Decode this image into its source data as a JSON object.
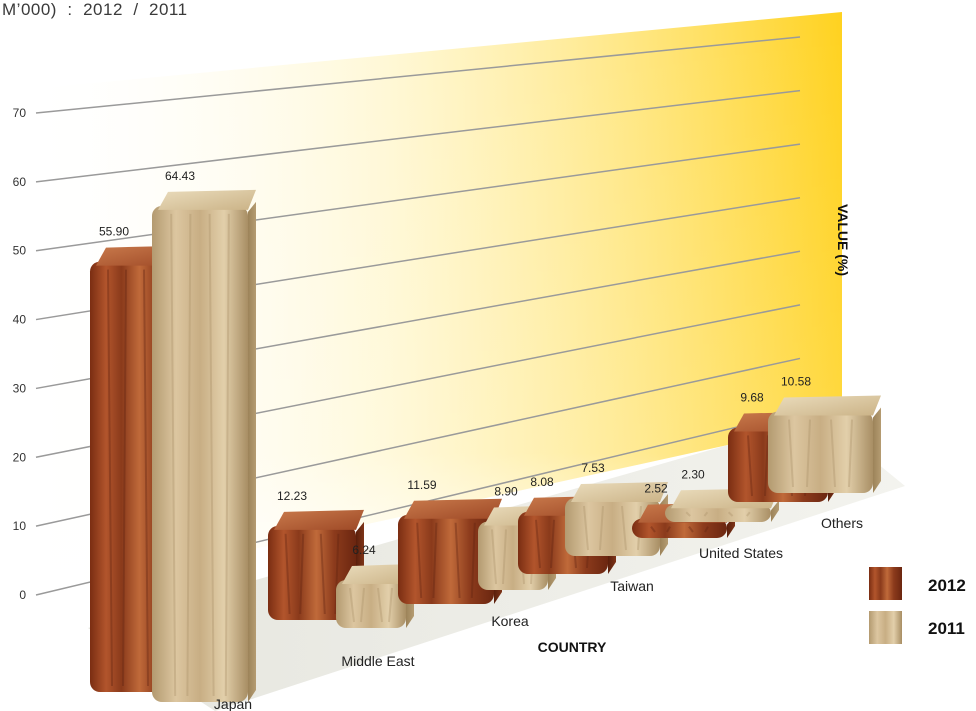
{
  "page": {
    "title_fragment": "M’000)  :  2012  /  2011"
  },
  "chart_data": {
    "type": "bar",
    "title": "",
    "xlabel": "COUNTRY",
    "ylabel": "VALUE (%)",
    "ylim": [
      0,
      70
    ],
    "yticks": [
      0,
      10,
      20,
      30,
      40,
      50,
      60,
      70
    ],
    "categories": [
      "Japan",
      "Middle East",
      "Korea",
      "Taiwan",
      "United States",
      "Others"
    ],
    "series": [
      {
        "name": "2012",
        "values": [
          55.9,
          12.23,
          11.59,
          8.08,
          2.52,
          9.68
        ],
        "labels": [
          "55.90",
          "12.23",
          "11.59",
          "8.08",
          "2.52",
          "9.68"
        ],
        "color": "#9b4a2a"
      },
      {
        "name": "2011",
        "values": [
          64.43,
          6.24,
          8.9,
          7.53,
          2.3,
          10.58
        ],
        "labels": [
          "64.43",
          "6.24",
          "8.90",
          "7.53",
          "2.30",
          "10.58"
        ],
        "color": "#cdb48a"
      }
    ],
    "legend_position": "bottom-right",
    "grid": true,
    "backdrop_color": "#ffd21f"
  }
}
